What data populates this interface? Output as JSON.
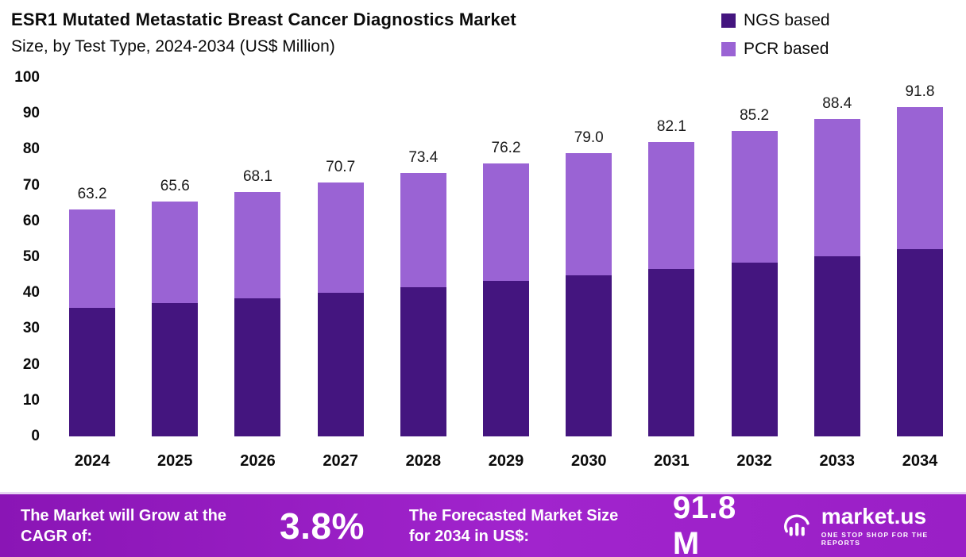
{
  "header": {
    "title_line1": "ESR1 Mutated Metastatic Breast Cancer Diagnostics Market",
    "title_line2": "Size, by Test Type, 2024-2034 (US$ Million)"
  },
  "legend": {
    "items": [
      {
        "label": "NGS based",
        "color": "#44157f"
      },
      {
        "label": "PCR based",
        "color": "#9a63d4"
      }
    ]
  },
  "chart_data": {
    "type": "bar",
    "stacked": true,
    "title": "ESR1 Mutated Metastatic Breast Cancer Diagnostics Market Size, by Test Type, 2024-2034 (US$ Million)",
    "xlabel": "",
    "ylabel": "",
    "ylim": [
      0,
      100
    ],
    "yticks": [
      0,
      10,
      20,
      30,
      40,
      50,
      60,
      70,
      80,
      90,
      100
    ],
    "grid": false,
    "legend_position": "top-right",
    "categories": [
      "2024",
      "2025",
      "2026",
      "2027",
      "2028",
      "2029",
      "2030",
      "2031",
      "2032",
      "2033",
      "2034"
    ],
    "series": [
      {
        "name": "NGS based",
        "color": "#44157f",
        "values": [
          35.8,
          37.1,
          38.6,
          40.1,
          41.6,
          43.3,
          44.9,
          46.7,
          48.4,
          50.2,
          52.3
        ]
      },
      {
        "name": "PCR based",
        "color": "#9a63d4",
        "values": [
          27.4,
          28.5,
          29.5,
          30.6,
          31.8,
          32.9,
          34.1,
          35.4,
          36.8,
          38.2,
          39.5
        ]
      }
    ],
    "totals": [
      63.2,
      65.6,
      68.1,
      70.7,
      73.4,
      76.2,
      79.0,
      82.1,
      85.2,
      88.4,
      91.8
    ],
    "total_labels": [
      "63.2",
      "65.6",
      "68.1",
      "70.7",
      "73.4",
      "76.2",
      "79.0",
      "82.1",
      "85.2",
      "88.4",
      "91.8"
    ]
  },
  "footer": {
    "cagr_label": "The Market will Grow at the CAGR of:",
    "cagr_value": "3.8%",
    "forecast_label": "The Forecasted Market Size for 2034 in US$:",
    "forecast_value": "91.8 M",
    "brand": "market.us",
    "tagline": "ONE STOP SHOP FOR THE REPORTS"
  }
}
